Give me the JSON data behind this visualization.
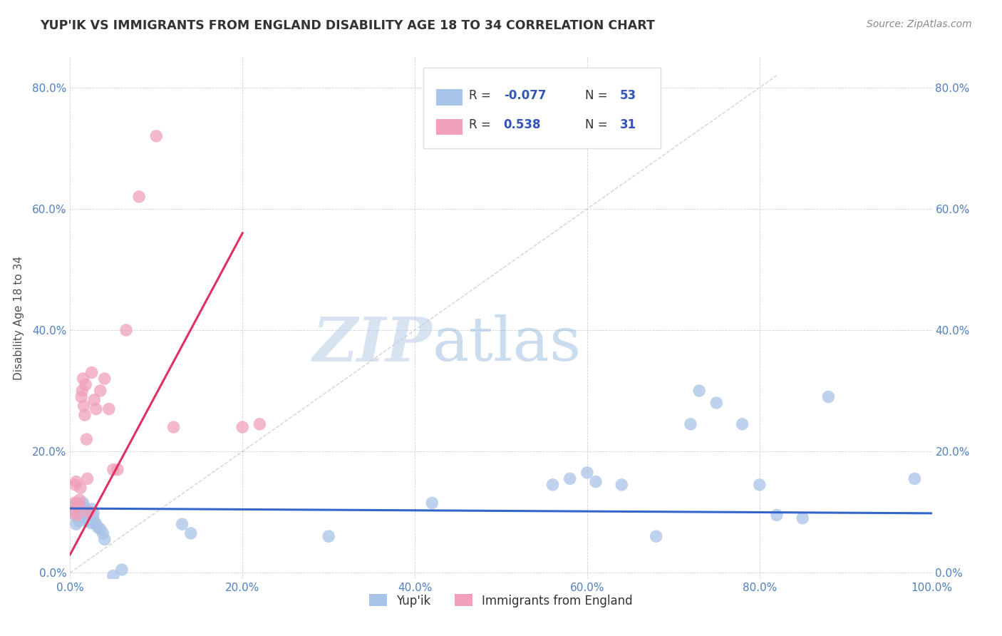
{
  "title": "YUP'IK VS IMMIGRANTS FROM ENGLAND DISABILITY AGE 18 TO 34 CORRELATION CHART",
  "source": "Source: ZipAtlas.com",
  "ylabel": "Disability Age 18 to 34",
  "xlim": [
    0,
    1.0
  ],
  "ylim": [
    -0.01,
    0.85
  ],
  "xticks": [
    0.0,
    0.2,
    0.4,
    0.6,
    0.8,
    1.0
  ],
  "xticklabels": [
    "0.0%",
    "20.0%",
    "40.0%",
    "60.0%",
    "80.0%",
    "100.0%"
  ],
  "yticks": [
    0.0,
    0.2,
    0.4,
    0.6,
    0.8
  ],
  "yticklabels": [
    "0.0%",
    "20.0%",
    "40.0%",
    "60.0%",
    "80.0%"
  ],
  "blue_color": "#a8c4e8",
  "pink_color": "#f0a0b8",
  "blue_line_color": "#3366cc",
  "pink_line_color": "#e03060",
  "diagonal_color": "#c8c8c8",
  "watermark_zip": "ZIP",
  "watermark_atlas": "atlas",
  "blue_scatter_x": [
    0.003,
    0.005,
    0.007,
    0.008,
    0.009,
    0.01,
    0.01,
    0.011,
    0.012,
    0.013,
    0.014,
    0.015,
    0.015,
    0.016,
    0.017,
    0.018,
    0.019,
    0.02,
    0.02,
    0.021,
    0.022,
    0.023,
    0.024,
    0.025,
    0.026,
    0.027,
    0.028,
    0.03,
    0.032,
    0.035,
    0.038,
    0.04,
    0.05,
    0.06,
    0.13,
    0.14,
    0.3,
    0.42,
    0.56,
    0.58,
    0.6,
    0.61,
    0.64,
    0.68,
    0.72,
    0.73,
    0.75,
    0.78,
    0.8,
    0.82,
    0.85,
    0.88,
    0.98
  ],
  "blue_scatter_y": [
    0.11,
    0.095,
    0.08,
    0.115,
    0.1,
    0.095,
    0.085,
    0.108,
    0.09,
    0.105,
    0.112,
    0.095,
    0.115,
    0.1,
    0.09,
    0.105,
    0.085,
    0.095,
    0.1,
    0.088,
    0.092,
    0.088,
    0.082,
    0.105,
    0.092,
    0.098,
    0.085,
    0.08,
    0.075,
    0.072,
    0.065,
    0.055,
    -0.005,
    0.005,
    0.08,
    0.065,
    0.06,
    0.115,
    0.145,
    0.155,
    0.165,
    0.15,
    0.145,
    0.06,
    0.245,
    0.3,
    0.28,
    0.245,
    0.145,
    0.095,
    0.09,
    0.29,
    0.155
  ],
  "pink_scatter_x": [
    0.003,
    0.005,
    0.006,
    0.007,
    0.008,
    0.01,
    0.011,
    0.012,
    0.013,
    0.014,
    0.015,
    0.016,
    0.017,
    0.018,
    0.019,
    0.02,
    0.022,
    0.025,
    0.028,
    0.03,
    0.035,
    0.04,
    0.045,
    0.05,
    0.055,
    0.065,
    0.08,
    0.1,
    0.12,
    0.2,
    0.22
  ],
  "pink_scatter_y": [
    0.1,
    0.115,
    0.145,
    0.15,
    0.095,
    0.11,
    0.12,
    0.14,
    0.29,
    0.3,
    0.32,
    0.275,
    0.26,
    0.31,
    0.22,
    0.155,
    0.1,
    0.33,
    0.285,
    0.27,
    0.3,
    0.32,
    0.27,
    0.17,
    0.17,
    0.4,
    0.62,
    0.72,
    0.24,
    0.24,
    0.245
  ],
  "blue_line_x0": 0.0,
  "blue_line_x1": 1.0,
  "blue_line_y0": 0.106,
  "blue_line_y1": 0.098,
  "pink_line_x0": 0.0,
  "pink_line_x1": 0.2,
  "pink_line_y0": 0.03,
  "pink_line_y1": 0.56
}
